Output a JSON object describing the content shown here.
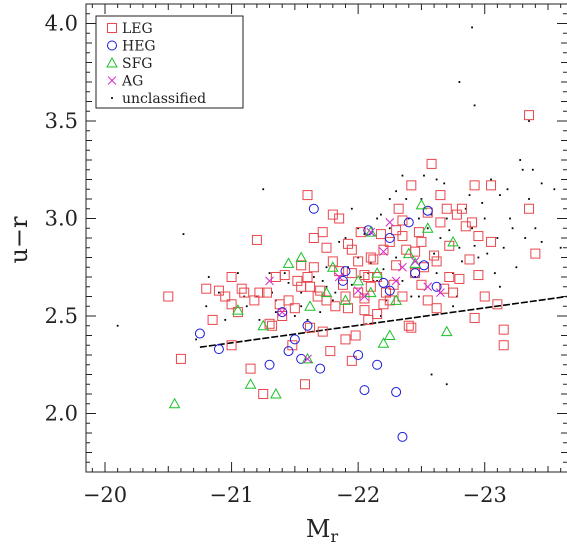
{
  "chart_data": {
    "type": "scatter",
    "xlabel": "M",
    "xlabel_sub": "r",
    "ylabel": "u−r",
    "xlim": [
      -19.85,
      -23.65
    ],
    "ylim": [
      1.7,
      4.1
    ],
    "x_ticks": [
      -20,
      -21,
      -22,
      -23
    ],
    "x_tick_labels": [
      "−20",
      "−21",
      "−22",
      "−23"
    ],
    "y_ticks": [
      2.0,
      2.5,
      3.0,
      3.5,
      4.0
    ],
    "y_tick_labels": [
      "2.0",
      "2.5",
      "3.0",
      "3.5",
      "4.0"
    ],
    "legend_position": "top-left",
    "colors": {
      "LEG": "#e8474d",
      "HEG": "#1a1adb",
      "SFG": "#19c22a",
      "AG": "#d72bd0",
      "unclassified": "#000000"
    },
    "series": [
      {
        "name": "LEG",
        "marker": "square",
        "points": [
          [
            -20.5,
            2.6
          ],
          [
            -20.6,
            2.28
          ],
          [
            -20.8,
            2.64
          ],
          [
            -20.9,
            2.63
          ],
          [
            -20.95,
            2.6
          ],
          [
            -21.0,
            2.7
          ],
          [
            -21.0,
            2.56
          ],
          [
            -21.05,
            2.52
          ],
          [
            -21.1,
            2.62
          ],
          [
            -21.15,
            2.23
          ],
          [
            -21.3,
            2.46
          ],
          [
            -21.2,
            2.89
          ],
          [
            -21.35,
            2.7
          ],
          [
            -21.4,
            2.5
          ],
          [
            -21.45,
            2.58
          ],
          [
            -21.5,
            2.54
          ],
          [
            -21.55,
            2.76
          ],
          [
            -21.6,
            2.7
          ],
          [
            -21.62,
            2.65
          ],
          [
            -21.7,
            2.63
          ],
          [
            -21.72,
            2.93
          ],
          [
            -21.75,
            2.85
          ],
          [
            -21.8,
            3.02
          ],
          [
            -21.85,
            2.73
          ],
          [
            -21.9,
            2.6
          ],
          [
            -21.9,
            2.38
          ],
          [
            -21.95,
            2.27
          ],
          [
            -21.95,
            2.72
          ],
          [
            -22.0,
            2.78
          ],
          [
            -22.0,
            2.62
          ],
          [
            -22.05,
            2.59
          ],
          [
            -22.05,
            2.71
          ],
          [
            -22.1,
            2.65
          ],
          [
            -22.1,
            2.8
          ],
          [
            -22.15,
            2.51
          ],
          [
            -22.2,
            2.56
          ],
          [
            -22.2,
            2.84
          ],
          [
            -22.25,
            2.88
          ],
          [
            -22.3,
            2.76
          ],
          [
            -22.3,
            2.94
          ],
          [
            -22.35,
            2.99
          ],
          [
            -22.35,
            2.6
          ],
          [
            -22.4,
            2.45
          ],
          [
            -22.45,
            2.72
          ],
          [
            -22.5,
            2.88
          ],
          [
            -22.5,
            2.66
          ],
          [
            -22.55,
            3.03
          ],
          [
            -22.6,
            2.81
          ],
          [
            -22.62,
            2.78
          ],
          [
            -22.65,
            3.12
          ],
          [
            -22.7,
            3.05
          ],
          [
            -22.75,
            2.62
          ],
          [
            -22.8,
            2.69
          ],
          [
            -22.85,
            2.96
          ],
          [
            -22.9,
            2.98
          ],
          [
            -22.95,
            2.91
          ],
          [
            -22.95,
            2.71
          ],
          [
            -23.0,
            2.6
          ],
          [
            -23.05,
            3.17
          ],
          [
            -23.1,
            2.56
          ],
          [
            -23.15,
            2.43
          ],
          [
            -23.15,
            2.35
          ],
          [
            -23.35,
            3.05
          ],
          [
            -23.35,
            3.53
          ],
          [
            -23.4,
            2.82
          ],
          [
            -21.6,
            3.12
          ],
          [
            -21.65,
            2.9
          ],
          [
            -21.68,
            2.6
          ],
          [
            -21.78,
            2.32
          ],
          [
            -21.85,
            3.0
          ],
          [
            -21.92,
            2.54
          ],
          [
            -22.02,
            2.93
          ],
          [
            -22.08,
            2.48
          ],
          [
            -22.12,
            2.79
          ],
          [
            -22.18,
            2.92
          ],
          [
            -22.28,
            2.66
          ],
          [
            -22.38,
            2.84
          ],
          [
            -22.42,
            3.17
          ],
          [
            -22.48,
            2.93
          ],
          [
            -22.52,
            2.75
          ],
          [
            -22.58,
            3.28
          ],
          [
            -22.68,
            2.64
          ],
          [
            -22.72,
            2.86
          ],
          [
            -22.82,
            3.05
          ],
          [
            -22.92,
            2.49
          ],
          [
            -21.25,
            2.1
          ],
          [
            -21.28,
            2.62
          ],
          [
            -21.48,
            2.35
          ],
          [
            -21.55,
            2.65
          ],
          [
            -21.58,
            2.15
          ],
          [
            -21.72,
            2.42
          ],
          [
            -21.82,
            2.55
          ],
          [
            -21.88,
            2.66
          ],
          [
            -21.92,
            2.87
          ],
          [
            -21.98,
            2.4
          ],
          [
            -22.22,
            2.62
          ],
          [
            -22.32,
            3.05
          ],
          [
            -22.45,
            2.83
          ],
          [
            -22.62,
            2.54
          ],
          [
            -22.78,
            3.02
          ],
          [
            -22.88,
            2.79
          ],
          [
            -21.08,
            2.64
          ],
          [
            -21.18,
            2.58
          ],
          [
            -21.32,
            2.45
          ],
          [
            -21.42,
            2.71
          ],
          [
            -21.52,
            2.68
          ],
          [
            -21.65,
            2.75
          ],
          [
            -21.75,
            2.58
          ],
          [
            -21.8,
            2.78
          ],
          [
            -21.95,
            2.84
          ],
          [
            -22.05,
            2.53
          ],
          [
            -22.15,
            2.7
          ],
          [
            -22.25,
            2.58
          ],
          [
            -22.35,
            2.91
          ],
          [
            -22.55,
            2.58
          ],
          [
            -22.65,
            2.98
          ],
          [
            -22.72,
            2.7
          ],
          [
            -22.92,
            3.17
          ],
          [
            -23.05,
            2.88
          ],
          [
            -20.85,
            2.48
          ],
          [
            -21.0,
            2.35
          ],
          [
            -21.22,
            2.62
          ],
          [
            -21.38,
            2.56
          ],
          [
            -21.62,
            2.44
          ],
          [
            -22.08,
            2.7
          ],
          [
            -22.42,
            2.44
          ]
        ]
      },
      {
        "name": "HEG",
        "marker": "circle",
        "points": [
          [
            -20.75,
            2.41
          ],
          [
            -20.9,
            2.33
          ],
          [
            -21.4,
            2.52
          ],
          [
            -21.45,
            2.32
          ],
          [
            -21.55,
            2.28
          ],
          [
            -21.6,
            2.45
          ],
          [
            -21.65,
            3.05
          ],
          [
            -21.7,
            2.23
          ],
          [
            -21.9,
            2.73
          ],
          [
            -22.0,
            2.3
          ],
          [
            -22.05,
            2.12
          ],
          [
            -22.15,
            2.25
          ],
          [
            -22.2,
            2.67
          ],
          [
            -22.25,
            2.63
          ],
          [
            -22.3,
            2.11
          ],
          [
            -22.35,
            1.88
          ],
          [
            -22.4,
            2.98
          ],
          [
            -22.45,
            2.72
          ],
          [
            -22.52,
            2.76
          ],
          [
            -21.3,
            2.25
          ],
          [
            -21.88,
            2.68
          ],
          [
            -22.08,
            2.94
          ],
          [
            -22.25,
            2.9
          ],
          [
            -22.55,
            3.04
          ],
          [
            -22.62,
            2.65
          ],
          [
            -21.5,
            2.38
          ]
        ]
      },
      {
        "name": "SFG",
        "marker": "triangle",
        "points": [
          [
            -20.55,
            2.05
          ],
          [
            -21.05,
            2.53
          ],
          [
            -21.15,
            2.15
          ],
          [
            -21.25,
            2.45
          ],
          [
            -21.35,
            2.1
          ],
          [
            -21.45,
            2.77
          ],
          [
            -21.55,
            2.8
          ],
          [
            -21.6,
            2.28
          ],
          [
            -21.75,
            2.62
          ],
          [
            -21.9,
            2.58
          ],
          [
            -22.0,
            2.68
          ],
          [
            -22.1,
            2.93
          ],
          [
            -22.15,
            2.72
          ],
          [
            -22.25,
            2.4
          ],
          [
            -22.3,
            2.58
          ],
          [
            -22.4,
            2.82
          ],
          [
            -22.5,
            3.07
          ],
          [
            -22.55,
            2.95
          ],
          [
            -22.7,
            2.42
          ],
          [
            -22.75,
            2.88
          ],
          [
            -22.45,
            2.77
          ],
          [
            -22.1,
            2.62
          ],
          [
            -21.8,
            2.75
          ],
          [
            -21.62,
            2.55
          ],
          [
            -22.2,
            2.36
          ]
        ]
      },
      {
        "name": "AG",
        "marker": "x",
        "points": [
          [
            -21.3,
            2.68
          ],
          [
            -21.4,
            2.52
          ],
          [
            -21.6,
            2.28
          ],
          [
            -22.0,
            2.63
          ],
          [
            -22.05,
            2.6
          ],
          [
            -22.1,
            2.93
          ],
          [
            -22.2,
            2.83
          ],
          [
            -22.25,
            2.98
          ],
          [
            -22.45,
            2.78
          ],
          [
            -22.55,
            2.65
          ],
          [
            -22.65,
            2.62
          ],
          [
            -21.85,
            2.7
          ],
          [
            -22.3,
            2.68
          ],
          [
            -22.35,
            2.75
          ]
        ]
      },
      {
        "name": "unclassified",
        "marker": "dot",
        "points": [
          [
            -20.1,
            2.45
          ],
          [
            -20.8,
            2.55
          ],
          [
            -20.9,
            2.62
          ],
          [
            -20.95,
            2.48
          ],
          [
            -21.05,
            2.72
          ],
          [
            -21.1,
            2.6
          ],
          [
            -21.2,
            2.6
          ],
          [
            -21.3,
            2.72
          ],
          [
            -21.35,
            2.58
          ],
          [
            -21.5,
            2.5
          ],
          [
            -21.55,
            2.62
          ],
          [
            -21.6,
            2.48
          ],
          [
            -21.65,
            2.7
          ],
          [
            -21.7,
            2.52
          ],
          [
            -21.75,
            2.65
          ],
          [
            -21.8,
            2.58
          ],
          [
            -21.85,
            2.88
          ],
          [
            -21.9,
            2.9
          ],
          [
            -21.95,
            2.66
          ],
          [
            -22.0,
            2.95
          ],
          [
            -22.0,
            2.8
          ],
          [
            -22.05,
            2.92
          ],
          [
            -22.1,
            2.77
          ],
          [
            -22.15,
            2.68
          ],
          [
            -22.15,
            3.0
          ],
          [
            -22.2,
            2.74
          ],
          [
            -22.25,
            2.95
          ],
          [
            -22.25,
            3.1
          ],
          [
            -22.3,
            2.8
          ],
          [
            -22.35,
            2.68
          ],
          [
            -22.4,
            3.0
          ],
          [
            -22.45,
            2.7
          ],
          [
            -22.5,
            3.1
          ],
          [
            -22.55,
            2.95
          ],
          [
            -22.6,
            2.82
          ],
          [
            -22.65,
            2.9
          ],
          [
            -22.7,
            3.0
          ],
          [
            -22.75,
            2.72
          ],
          [
            -22.8,
            2.85
          ],
          [
            -22.85,
            3.05
          ],
          [
            -22.9,
            2.95
          ],
          [
            -22.95,
            2.8
          ],
          [
            -23.0,
            3.0
          ],
          [
            -23.05,
            3.2
          ],
          [
            -23.1,
            2.9
          ],
          [
            -23.15,
            2.85
          ],
          [
            -23.2,
            3.0
          ],
          [
            -23.25,
            2.75
          ],
          [
            -23.3,
            3.25
          ],
          [
            -23.35,
            3.1
          ],
          [
            -23.4,
            2.95
          ],
          [
            -23.45,
            3.18
          ],
          [
            -23.55,
            3.15
          ],
          [
            -23.6,
            2.85
          ],
          [
            -22.8,
            3.7
          ],
          [
            -22.9,
            3.98
          ],
          [
            -23.35,
            3.5
          ],
          [
            -21.25,
            3.15
          ],
          [
            -21.35,
            2.52
          ],
          [
            -21.45,
            2.67
          ],
          [
            -21.55,
            2.55
          ],
          [
            -21.75,
            2.75
          ],
          [
            -21.95,
            3.05
          ],
          [
            -22.08,
            2.72
          ],
          [
            -22.18,
            3.02
          ],
          [
            -22.3,
            3.14
          ],
          [
            -22.38,
            3.1
          ],
          [
            -22.42,
            2.6
          ],
          [
            -22.52,
            3.22
          ],
          [
            -22.58,
            3.02
          ],
          [
            -22.62,
            2.72
          ],
          [
            -22.68,
            3.18
          ],
          [
            -22.72,
            2.94
          ],
          [
            -22.78,
            2.6
          ],
          [
            -22.82,
            2.78
          ],
          [
            -22.88,
            3.12
          ],
          [
            -22.92,
            2.86
          ],
          [
            -22.98,
            3.08
          ],
          [
            -23.02,
            2.82
          ],
          [
            -23.08,
            2.72
          ],
          [
            -23.12,
            3.12
          ],
          [
            -23.18,
            3.15
          ],
          [
            -23.22,
            2.95
          ],
          [
            -23.28,
            3.3
          ],
          [
            -23.32,
            2.9
          ],
          [
            -23.38,
            3.25
          ],
          [
            -22.7,
            2.15
          ],
          [
            -22.58,
            2.2
          ],
          [
            -22.48,
            2.6
          ],
          [
            -22.22,
            2.58
          ],
          [
            -22.12,
            2.68
          ],
          [
            -22.02,
            2.7
          ],
          [
            -21.92,
            2.75
          ],
          [
            -21.82,
            2.62
          ],
          [
            -21.72,
            2.68
          ],
          [
            -21.42,
            2.72
          ],
          [
            -21.32,
            2.62
          ],
          [
            -21.22,
            2.48
          ],
          [
            -21.12,
            2.55
          ],
          [
            -20.72,
            2.38
          ],
          [
            -20.62,
            2.92
          ],
          [
            -20.82,
            2.7
          ],
          [
            -22.62,
            3.2
          ],
          [
            -22.92,
            3.58
          ],
          [
            -22.75,
            2.55
          ],
          [
            -23.12,
            2.65
          ],
          [
            -23.45,
            2.88
          ],
          [
            -22.35,
            3.22
          ],
          [
            -22.48,
            3.0
          ],
          [
            -22.18,
            2.5
          ]
        ]
      }
    ],
    "threshold_line": {
      "from": [
        -20.75,
        2.34
      ],
      "to": [
        -23.65,
        2.6
      ]
    }
  }
}
